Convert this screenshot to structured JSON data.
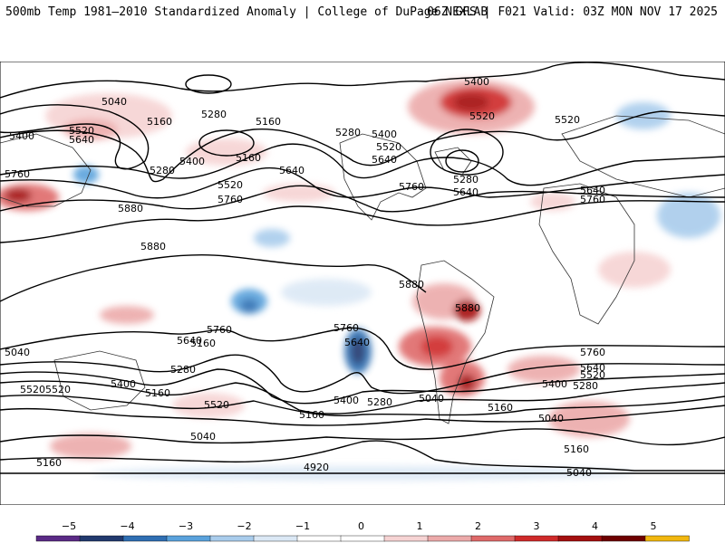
{
  "header": {
    "left": "500mb Temp 1981–2010 Standardized Anomaly | College of DuPage NEXLAB",
    "right": "06Z GFS | F021 Valid: 03Z MON NOV 17 2025"
  },
  "colorbar": {
    "ticks": [
      "−5",
      "−4",
      "−3",
      "−2",
      "−1",
      "0",
      "1",
      "2",
      "3",
      "4",
      "5"
    ],
    "colors": [
      "#5b2a86",
      "#22396e",
      "#2f6fb3",
      "#5aa2dc",
      "#a9ccec",
      "#dbe8f5",
      "#ffffff",
      "#ffffff",
      "#f6d3d3",
      "#ecaaaa",
      "#df6a6a",
      "#cf2a2a",
      "#a40f0f",
      "#6e0000",
      "#f1b710"
    ]
  },
  "contour_labels": [
    "5040",
    "5160",
    "5280",
    "5160",
    "5400",
    "5520",
    "5640",
    "5280",
    "5400",
    "5160",
    "5520",
    "5640",
    "5760",
    "5760",
    "5880",
    "5880",
    "5280",
    "5400",
    "5520",
    "5640",
    "5760",
    "5280",
    "5640",
    "5400",
    "5520",
    "5640",
    "5520",
    "5760",
    "5760",
    "5880",
    "5880",
    "5760",
    "5640",
    "5280",
    "5520",
    "5400",
    "5160",
    "5160",
    "5520",
    "5640",
    "5400",
    "5280",
    "5040",
    "5160",
    "5040",
    "5160",
    "4920",
    "5520",
    "5040",
    "5160",
    "5640",
    "5520",
    "5760",
    "5400",
    "5280",
    "5040",
    "5160",
    "5040"
  ]
}
